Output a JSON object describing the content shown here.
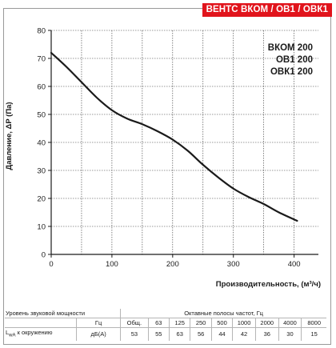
{
  "banner": "ВЕНТС ВКОМ / ОВ1 / ОВК1",
  "models": [
    "ВКОМ 200",
    "ОВ1 200",
    "ОВК1 200"
  ],
  "chart_data": {
    "type": "line",
    "title": "",
    "xlabel": "Производительность, (м³/ч)",
    "ylabel": "Давление, ΔP (Па)",
    "xlim": [
      0,
      440
    ],
    "ylim": [
      0,
      80
    ],
    "x_ticks": [
      0,
      100,
      200,
      300,
      400
    ],
    "y_ticks": [
      0,
      10,
      20,
      30,
      40,
      50,
      60,
      70,
      80
    ],
    "grid": true,
    "series": [
      {
        "name": "",
        "color": "#1a1a1a",
        "x": [
          0,
          25,
          50,
          75,
          100,
          125,
          150,
          175,
          200,
          225,
          250,
          275,
          300,
          325,
          350,
          375,
          405
        ],
        "y": [
          72,
          67,
          61.5,
          56,
          51.5,
          48.5,
          46.5,
          44,
          41,
          37,
          32,
          27.5,
          23.5,
          20.5,
          18,
          15,
          12
        ]
      }
    ]
  },
  "sound_table": {
    "row1": {
      "label": "Уровень звуковой мощности",
      "header": "Октавные полосы частот, Гц"
    },
    "row2": {
      "unit": "Гц",
      "cells": [
        "Общ.",
        "63",
        "125",
        "250",
        "500",
        "1000",
        "2000",
        "4000",
        "8000"
      ]
    },
    "row3": {
      "label_prefix": "L",
      "label_sub": "wA",
      "label_suffix": " к окружению",
      "unit": "дБ(А)",
      "cells": [
        "53",
        "55",
        "63",
        "56",
        "44",
        "42",
        "36",
        "30",
        "15"
      ]
    }
  }
}
